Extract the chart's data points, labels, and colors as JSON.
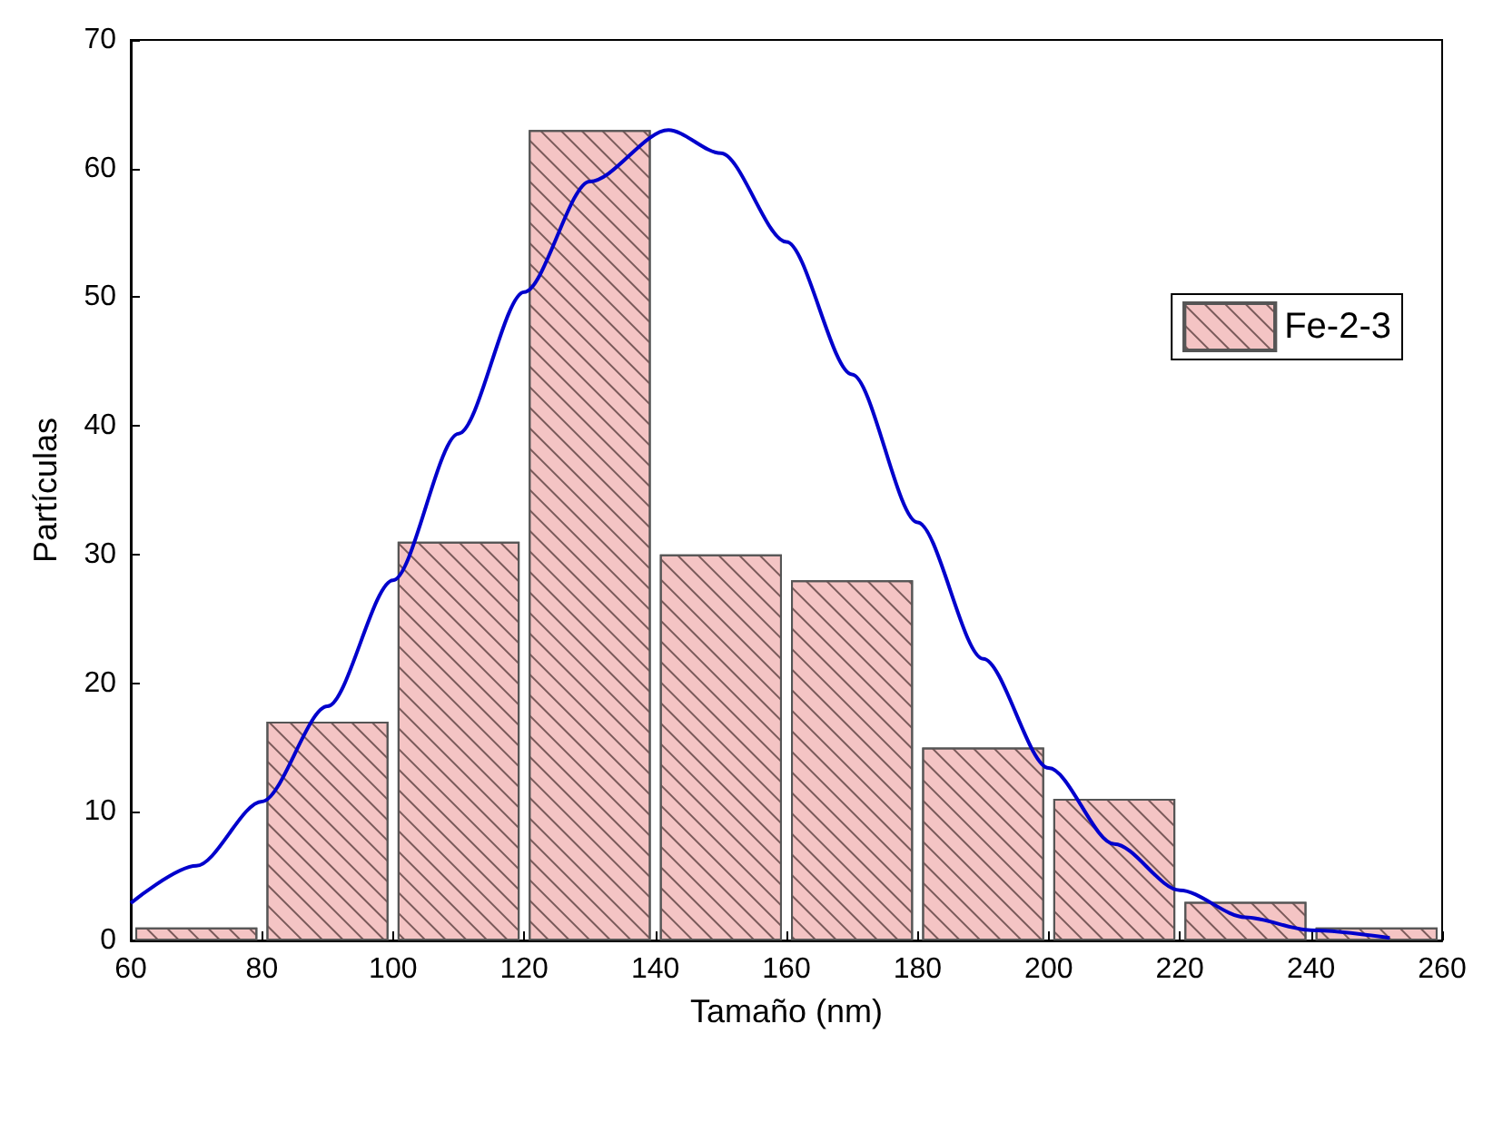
{
  "chart_data": {
    "type": "histogram",
    "xlabel": "Tamaño (nm)",
    "ylabel": "Partículas",
    "bins": [
      60,
      80,
      100,
      120,
      140,
      160,
      180,
      200,
      220,
      240,
      260
    ],
    "series": [
      {
        "name": "Fe-2-3",
        "color": "#f4c4c4",
        "values": [
          1,
          17,
          31,
          63,
          30,
          28,
          15,
          11,
          3,
          1
        ]
      },
      {
        "type": "line",
        "color": "#0000cc",
        "x": [
          60,
          70,
          80,
          90,
          100,
          110,
          120,
          130,
          142,
          150,
          160,
          170,
          180,
          190,
          200,
          210,
          220,
          230,
          240,
          252
        ],
        "values": [
          2.9,
          5.8,
          10.8,
          18.2,
          28,
          39.4,
          50.4,
          59,
          63,
          61.2,
          54.3,
          44,
          32.5,
          21.9,
          13.4,
          7.5,
          3.9,
          1.8,
          0.8,
          0.2
        ]
      }
    ],
    "xlim": [
      60,
      260
    ],
    "xticks": [
      60,
      80,
      100,
      120,
      140,
      160,
      180,
      200,
      220,
      240,
      260
    ],
    "ylim": [
      0,
      70
    ],
    "yticks": [
      0,
      10,
      20,
      30,
      40,
      50,
      60,
      70
    ],
    "grid": false,
    "legend": "top right",
    "marker": "none",
    "line_style": "solid"
  }
}
